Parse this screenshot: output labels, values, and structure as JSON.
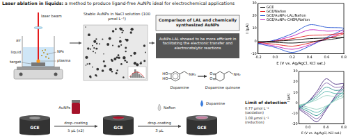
{
  "title": {
    "lead": "Laser ablation in liquids:",
    "text": "a method to produce ligand-free AuNPs ideal for electrochemical applications"
  },
  "setup": {
    "laser_beam": "laser beam",
    "air": "air",
    "liquid": "liquid",
    "target": "target",
    "plasma": "plasma",
    "nps": "NPs"
  },
  "tem": {
    "caption": "Stable AuNPs in NaCl solution (100 μmol L⁻¹)"
  },
  "comparison": {
    "heading": "Comparison of LAL and chemically synthesized AuNPs",
    "finding": "AuNPs-LAL showed to be more efficient in facilitating the electronic transfer and electrocatalytic reactions"
  },
  "reaction": {
    "reactant": {
      "name": "Dopamine",
      "groups": [
        "HO",
        "HO",
        "NH₂"
      ]
    },
    "product": {
      "name": "Dopamine quinone",
      "groups": [
        "O",
        "O",
        "NH₂"
      ]
    }
  },
  "preparation": {
    "electrodes": [
      "GCE",
      "GCE",
      "GCE"
    ],
    "steps": [
      {
        "reagent": "AuNPs",
        "method": "drop-coating",
        "volume": "5 μL (x2)"
      },
      {
        "reagent": "Nafion",
        "method": "drop-coating",
        "volume": "3 μL"
      }
    ],
    "analyte": "Dopamine"
  },
  "detection": {
    "heading": "Limit of detection",
    "lines": [
      "0.77 μmol L⁻¹ (oxidation)",
      "1.08 μmol L⁻¹ (reduction)"
    ]
  },
  "chart_data": [
    {
      "type": "line",
      "x_label": "E (V vs. Ag/AgCl, KCl sat.)",
      "y_label": "I (μA)",
      "x": [
        -0.2,
        0,
        0.2,
        0.4,
        0.6,
        0.8,
        0.6,
        0.4,
        0.2,
        0,
        -0.2
      ],
      "xlim": [
        -0.2,
        0.8
      ],
      "xticks": [
        -0.2,
        {
          "value": 0,
          "label": "0.0"
        },
        0.2,
        0.4,
        0.6,
        0.8
      ],
      "ylim": [
        -10,
        30
      ],
      "yticks": [
        -10,
        0,
        10,
        20,
        30
      ],
      "grid": false,
      "legend": "upper left",
      "series": [
        {
          "name": "GCE",
          "color": "#000000",
          "values": [
            -0.5,
            0,
            0.8,
            2,
            2.5,
            3,
            1,
            -0.5,
            -1.5,
            -1,
            -0.5
          ]
        },
        {
          "name": "GCE/Nafion",
          "color": "#e41a1c",
          "values": [
            -1,
            0,
            2,
            4.5,
            5,
            6,
            2,
            -1.5,
            -4,
            -2.5,
            -1
          ]
        },
        {
          "name": "GCE/AuNPs-LAL/Nafion",
          "color": "#1f4fd1",
          "values": [
            -2,
            1,
            6,
            13,
            11,
            10,
            3,
            -4,
            -9,
            -5,
            -2
          ]
        },
        {
          "name": "GCE/AuNPs-CHEM/Nafion",
          "color": "#c020c0",
          "values": [
            -1.5,
            0.5,
            4,
            9,
            8,
            8,
            2,
            -3,
            -6.5,
            -4,
            -1.5
          ]
        }
      ]
    },
    {
      "type": "line",
      "x_label": "E (V vs. Ag/AgCl, KCl sat.)",
      "y_label": "I (μA)",
      "x": [
        -0.2,
        0,
        0.2,
        0.4,
        0.6,
        0.8,
        0.6,
        0.4,
        0.2,
        0,
        -0.2
      ],
      "xlim": [
        -0.2,
        0.8
      ],
      "xticks": [
        {
          "value": 0,
          "label": "0.0"
        },
        0.4,
        0.8
      ],
      "ylim": [
        -20,
        30
      ],
      "yticks": [
        -20,
        -10,
        0,
        10,
        20,
        30
      ],
      "grid": false,
      "series": [
        {
          "color": "#9ad0c2",
          "values": [
            -2,
            0,
            3,
            7,
            6,
            6,
            2,
            -3,
            -6,
            -4,
            -2
          ]
        },
        {
          "color": "#4fb3a9",
          "values": [
            -3,
            0,
            5,
            11,
            9,
            9,
            3,
            -4,
            -9,
            -6,
            -3
          ]
        },
        {
          "color": "#2a8c8c",
          "values": [
            -4,
            1,
            7,
            15,
            12,
            12,
            4,
            -5,
            -12,
            -8,
            -4
          ]
        },
        {
          "color": "#7b5aa6",
          "values": [
            -5,
            1,
            9,
            19,
            15,
            15,
            5,
            -6,
            -15,
            -10,
            -5
          ]
        },
        {
          "color": "#4b2c7f",
          "values": [
            -6,
            1,
            11,
            23,
            18,
            18,
            6,
            -7,
            -18,
            -12,
            -6
          ]
        }
      ]
    }
  ]
}
